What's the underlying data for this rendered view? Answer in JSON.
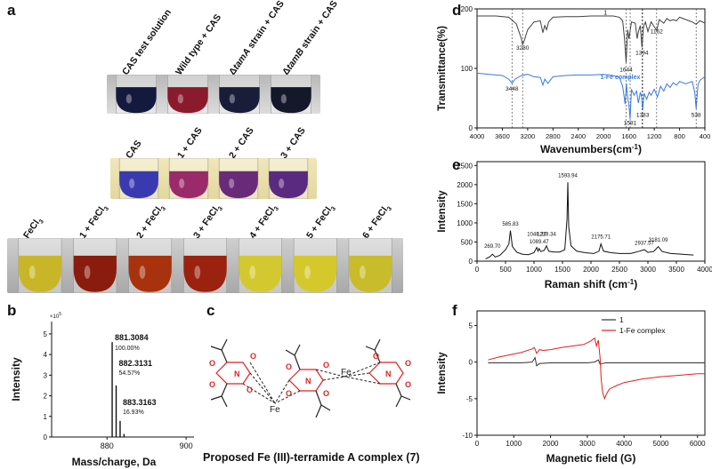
{
  "panels": {
    "a": {
      "label": "a",
      "row1_labels": [
        "CAS test solution",
        "Wild type + CAS",
        "ΔtamA strain + CAS",
        "ΔtamB strain + CAS"
      ],
      "row1_colors": [
        "#141a3e",
        "#8a1a2c",
        "#1a1d3a",
        "#15172a"
      ],
      "row2_labels": [
        "CAS",
        "1 + CAS",
        "2 + CAS",
        "3 + CAS"
      ],
      "row2_colors": [
        "#3a3ab0",
        "#9a2a6a",
        "#6a2a7a",
        "#5a2a80"
      ],
      "row3_labels": [
        "FeCl3",
        "1 + FeCl3",
        "2 + FeCl3",
        "3 + FeCl3",
        "4 + FeCl3",
        "5 + FeCl3",
        "6 + FeCl3"
      ],
      "row3_colors": [
        "#c8b628",
        "#8a1c0e",
        "#a8320e",
        "#9a220e",
        "#d4c830",
        "#d4c82c",
        "#c8bc2a"
      ]
    },
    "b": {
      "label": "b",
      "ylabel": "Intensity",
      "xlabel": "Mass/charge, Da",
      "yexp": "×10",
      "yexp_sup": "5",
      "peak_labels": [
        {
          "mz": "881.3084",
          "pct": "100.00%"
        },
        {
          "mz": "882.3131",
          "pct": "54.57%"
        },
        {
          "mz": "883.3163",
          "pct": "16.93%"
        }
      ]
    },
    "c": {
      "label": "c",
      "caption": "Proposed Fe (III)-terramide A complex (7)",
      "fe_label": "Fe",
      "o_label": "O",
      "n_label": "N"
    },
    "d": {
      "label": "d",
      "series_black": "1",
      "series_blue": "1-Fe complex",
      "peaks_black": [
        "3280",
        "1644",
        "1394",
        "1162"
      ],
      "peaks_blue": [
        "3448",
        "1581",
        "1383",
        "538"
      ]
    },
    "e": {
      "label": "e",
      "peaks": [
        "269.70",
        "585.83",
        "1089.47",
        "1048.37",
        "1218.34",
        "1593.94",
        "2175.71",
        "2937.57",
        "3181.09"
      ]
    },
    "f": {
      "label": "f"
    }
  },
  "chart_data": [
    {
      "id": "b",
      "type": "bar",
      "title": "",
      "xlabel": "Mass/charge, Da",
      "ylabel": "Intensity",
      "x_ticks": [
        880,
        900
      ],
      "y_ticks": [
        0,
        1,
        2,
        3,
        4,
        5
      ],
      "xlim": [
        866,
        902
      ],
      "ylim": [
        0,
        5.6
      ],
      "x": [
        881.3084,
        882.3131,
        883.3163,
        884.3
      ],
      "values": [
        4.6,
        2.5,
        0.78,
        0.15
      ]
    },
    {
      "id": "d",
      "type": "line",
      "title": "",
      "xlabel": "Wavenumbers(cm",
      "xlabel_sup": "-1",
      "xlabel_end": ")",
      "ylabel": "Transmittance(%)",
      "x_ticks": [
        4000,
        3600,
        3200,
        2800,
        2400,
        2000,
        1600,
        1200,
        800,
        400
      ],
      "y_ticks": [
        0,
        100,
        200
      ],
      "xlim": [
        4000,
        400
      ],
      "ylim": [
        0,
        200
      ],
      "vlines": [
        3448,
        3280,
        1644,
        1581,
        1394,
        1383,
        1162,
        538
      ],
      "series": [
        {
          "name": "1",
          "color": "#404040",
          "x": [
            4000,
            3700,
            3500,
            3380,
            3300,
            3280,
            3250,
            3200,
            3100,
            3000,
            2960,
            2930,
            2900,
            2870,
            2800,
            2600,
            2400,
            2200,
            2000,
            1850,
            1750,
            1700,
            1670,
            1644,
            1620,
            1600,
            1560,
            1500,
            1470,
            1450,
            1420,
            1394,
            1370,
            1340,
            1300,
            1250,
            1200,
            1162,
            1120,
            1050,
            1000,
            950,
            900,
            850,
            800,
            700,
            600,
            538,
            480,
            400
          ],
          "values": [
            188,
            188,
            186,
            175,
            150,
            140,
            148,
            165,
            178,
            180,
            160,
            172,
            165,
            178,
            186,
            187,
            187,
            188,
            188,
            188,
            186,
            180,
            150,
            110,
            165,
            150,
            178,
            176,
            150,
            162,
            172,
            135,
            170,
            178,
            162,
            178,
            170,
            164,
            182,
            176,
            184,
            180,
            182,
            180,
            186,
            182,
            178,
            174,
            180,
            176
          ]
        },
        {
          "name": "1-Fe complex",
          "color": "#3a7ae0",
          "x": [
            4000,
            3800,
            3600,
            3500,
            3448,
            3400,
            3300,
            3200,
            3100,
            3000,
            2960,
            2930,
            2880,
            2800,
            2600,
            2400,
            2200,
            2000,
            1850,
            1750,
            1700,
            1660,
            1640,
            1620,
            1600,
            1581,
            1560,
            1520,
            1480,
            1450,
            1420,
            1400,
            1383,
            1360,
            1320,
            1280,
            1250,
            1200,
            1150,
            1100,
            1050,
            1000,
            950,
            900,
            850,
            800,
            700,
            600,
            560,
            538,
            510,
            480,
            400
          ],
          "values": [
            92,
            90,
            88,
            82,
            75,
            82,
            88,
            90,
            86,
            85,
            72,
            82,
            75,
            86,
            88,
            89,
            89,
            90,
            88,
            85,
            70,
            40,
            75,
            52,
            38,
            15,
            65,
            55,
            62,
            42,
            60,
            52,
            30,
            58,
            48,
            60,
            55,
            65,
            52,
            70,
            62,
            74,
            68,
            76,
            72,
            78,
            74,
            78,
            60,
            32,
            72,
            80,
            86
          ]
        }
      ]
    },
    {
      "id": "e",
      "type": "line",
      "title": "",
      "xlabel": "Raman shift (cm",
      "xlabel_sup": "-1",
      "xlabel_end": ")",
      "ylabel": "Intensity",
      "x_ticks": [
        0,
        500,
        1000,
        1500,
        2000,
        2500,
        3000,
        3500,
        4000
      ],
      "y_ticks": [
        0,
        500,
        1000,
        1500,
        2000,
        2500
      ],
      "xlim": [
        0,
        4000
      ],
      "ylim": [
        0,
        2600
      ],
      "series": [
        {
          "name": "Raman",
          "color": "#111111",
          "x": [
            150,
            230,
            269.7,
            320,
            400,
            500,
            560,
            585.83,
            620,
            700,
            800,
            900,
            1000,
            1048.37,
            1070,
            1089.47,
            1120,
            1180,
            1218.34,
            1260,
            1350,
            1450,
            1540,
            1580,
            1593.94,
            1610,
            1650,
            1750,
            1900,
            2050,
            2140,
            2175.71,
            2220,
            2350,
            2500,
            2700,
            2850,
            2937.57,
            3000,
            3100,
            3181.09,
            3250,
            3400,
            3600,
            3800
          ],
          "values": [
            60,
            120,
            180,
            110,
            150,
            300,
            450,
            800,
            380,
            230,
            180,
            170,
            220,
            360,
            260,
            330,
            250,
            280,
            400,
            260,
            240,
            240,
            300,
            1100,
            2060,
            900,
            400,
            260,
            220,
            200,
            260,
            450,
            260,
            220,
            200,
            200,
            260,
            300,
            230,
            250,
            380,
            250,
            200,
            180,
            160
          ]
        }
      ]
    },
    {
      "id": "f",
      "type": "line",
      "title": "",
      "xlabel": "Magnetic field (G)",
      "ylabel": "Intensity",
      "x_ticks": [
        0,
        1000,
        2000,
        3000,
        4000,
        5000,
        6000
      ],
      "y_ticks": [
        -10,
        -5,
        0,
        5
      ],
      "xlim": [
        0,
        6200
      ],
      "ylim": [
        -10,
        7
      ],
      "series": [
        {
          "name": "1",
          "color": "#333333",
          "x": [
            300,
            800,
            1200,
            1500,
            1580,
            1620,
            1700,
            2000,
            2500,
            3000,
            3200,
            3300,
            3350,
            3400,
            3500,
            4000,
            4500,
            5000,
            5500,
            6000,
            6200
          ],
          "values": [
            -0.1,
            -0.1,
            -0.1,
            0.0,
            0.6,
            -0.5,
            -0.2,
            -0.1,
            -0.1,
            -0.1,
            0.0,
            0.3,
            -0.3,
            -0.2,
            -0.1,
            -0.1,
            -0.1,
            -0.1,
            -0.1,
            -0.1,
            -0.1
          ]
        },
        {
          "name": "1-Fe complex",
          "color": "#e02020",
          "x": [
            300,
            600,
            900,
            1200,
            1500,
            1560,
            1620,
            1700,
            1800,
            2000,
            2300,
            2600,
            2900,
            3100,
            3200,
            3250,
            3300,
            3350,
            3380,
            3420,
            3470,
            3520,
            3600,
            3800,
            4000,
            4500,
            5000,
            5500,
            6000,
            6200
          ],
          "values": [
            0.3,
            0.7,
            1.0,
            1.3,
            1.8,
            2.0,
            1.2,
            1.7,
            1.6,
            1.7,
            2.0,
            2.2,
            2.4,
            2.9,
            3.3,
            2.2,
            3.0,
            0.5,
            -2.5,
            -4.2,
            -5.0,
            -4.4,
            -3.7,
            -3.2,
            -2.8,
            -2.3,
            -2.0,
            -1.8,
            -1.6,
            -1.6
          ]
        }
      ]
    }
  ]
}
